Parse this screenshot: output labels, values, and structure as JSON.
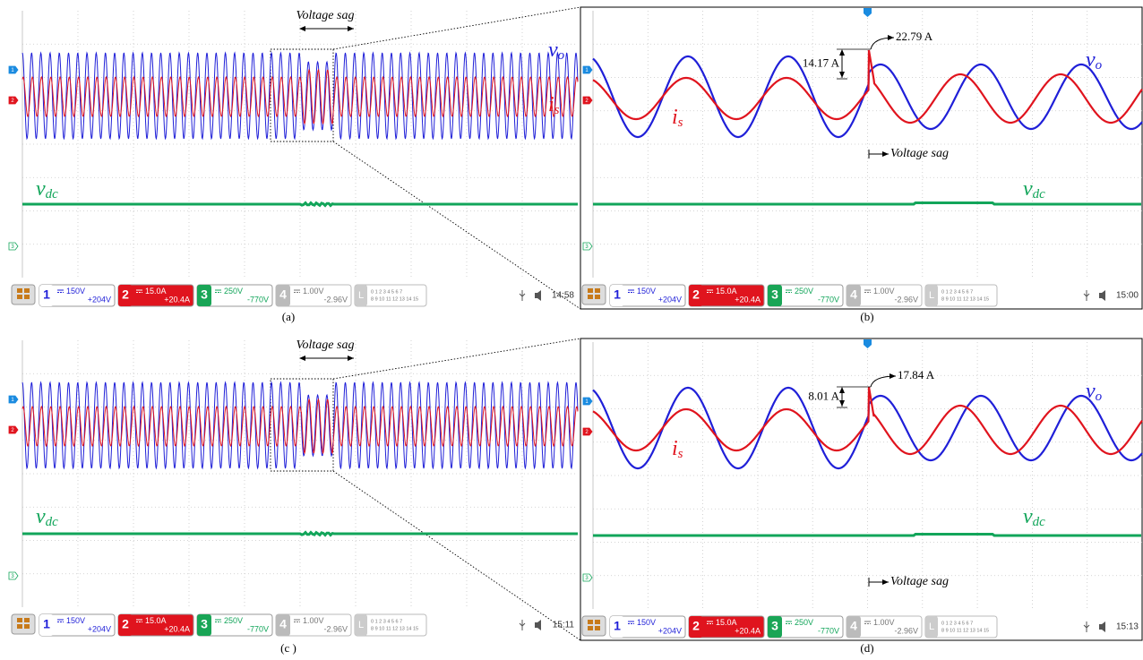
{
  "channels": [
    {
      "num": "1",
      "scale": "150V",
      "offset": "+204V"
    },
    {
      "num": "2",
      "scale": "15.0A",
      "offset": "+20.4A"
    },
    {
      "num": "3",
      "scale": "250V",
      "offset": "-770V"
    },
    {
      "num": "4",
      "scale": "1.00V",
      "offset": "-2.96V"
    }
  ],
  "logic": {
    "label": "L",
    "bits_top": "0 1 2 3 4 5 6 7",
    "bits_bottom": "8 9 10 11 12 13 14 15"
  },
  "panels": [
    {
      "caption": "(a)",
      "clock": "14:58",
      "labels": {
        "sag": "Voltage sag",
        "vo": {
          "base": "v",
          "sub": "o"
        },
        "is": {
          "base": "i",
          "sub": "s"
        },
        "vdc": {
          "base": "v",
          "sub": "dc"
        }
      }
    },
    {
      "caption": "(b)",
      "clock": "15:00",
      "labels": {
        "sag": "Voltage sag",
        "vo": {
          "base": "v",
          "sub": "o"
        },
        "is": {
          "base": "i",
          "sub": "s"
        },
        "vdc": {
          "base": "v",
          "sub": "dc"
        },
        "delta": "14.17 A",
        "peak": "22.79 A"
      }
    },
    {
      "caption": "(c )",
      "clock": "15:11",
      "labels": {
        "sag": "Voltage sag",
        "vdc": {
          "base": "v",
          "sub": "dc"
        }
      }
    },
    {
      "caption": "(d)",
      "clock": "15:13",
      "labels": {
        "sag": "Voltage sag",
        "vo": {
          "base": "v",
          "sub": "o"
        },
        "is": {
          "base": "i",
          "sub": "s"
        },
        "vdc": {
          "base": "v",
          "sub": "dc"
        },
        "delta": "8.01 A",
        "peak": "17.84 A"
      }
    }
  ]
}
